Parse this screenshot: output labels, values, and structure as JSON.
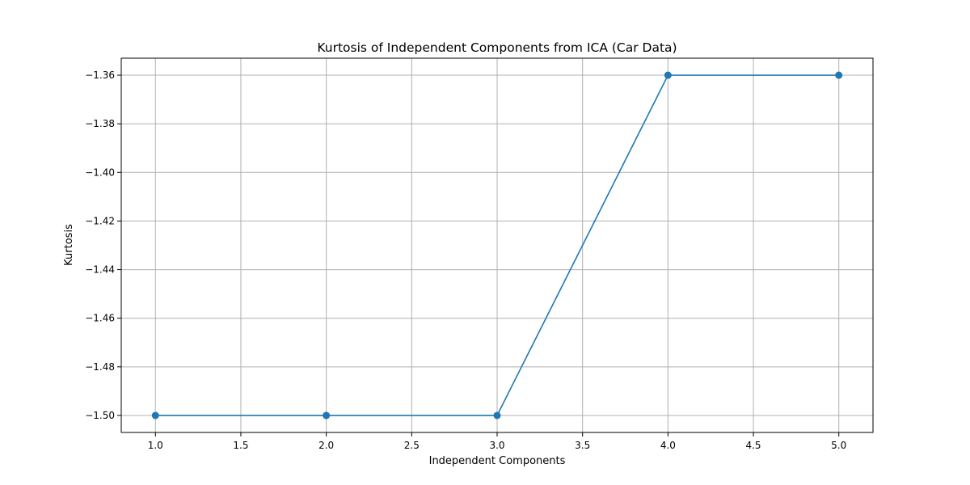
{
  "chart_data": {
    "type": "line",
    "title": "Kurtosis of Independent Components from ICA (Car Data)",
    "xlabel": "Independent Components",
    "ylabel": "Kurtosis",
    "x": [
      1,
      2,
      3,
      4,
      5
    ],
    "series": [
      {
        "values": [
          -1.5,
          -1.5,
          -1.5,
          -1.36,
          -1.36
        ]
      }
    ],
    "xlim": [
      0.8,
      5.2
    ],
    "ylim": [
      -1.507,
      -1.353
    ],
    "xticks": [
      1.0,
      1.5,
      2.0,
      2.5,
      3.0,
      3.5,
      4.0,
      4.5,
      5.0
    ],
    "xtick_labels": [
      "1.0",
      "1.5",
      "2.0",
      "2.5",
      "3.0",
      "3.5",
      "4.0",
      "4.5",
      "5.0"
    ],
    "yticks": [
      -1.5,
      -1.48,
      -1.46,
      -1.44,
      -1.42,
      -1.4,
      -1.38,
      -1.36
    ],
    "ytick_labels": [
      "−1.50",
      "−1.48",
      "−1.46",
      "−1.44",
      "−1.42",
      "−1.40",
      "−1.38",
      "−1.36"
    ],
    "grid": true,
    "marker": "circle",
    "line_color": "#1f77b4",
    "grid_color": "#b0b0b0"
  }
}
